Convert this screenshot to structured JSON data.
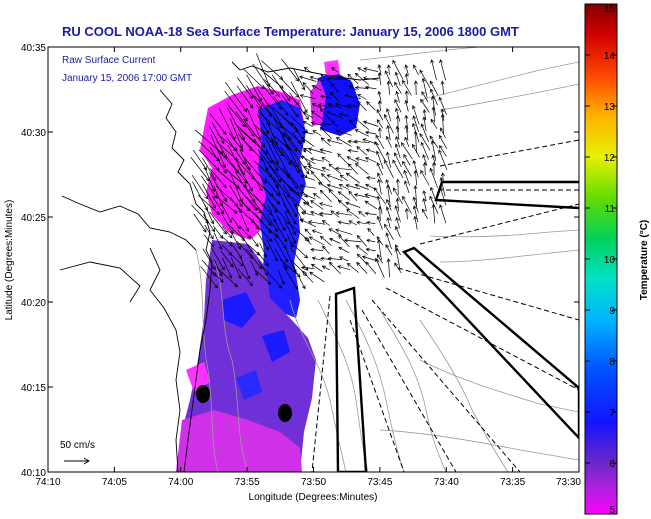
{
  "title": "RU COOL  NOAA-18  Sea Surface Temperature:  January 15, 2006 1800 GMT",
  "current_label_line1": "Raw Surface Current",
  "current_label_line2": "January 15, 2006 17:00 GMT",
  "scale_label": "50 cm/s",
  "x_axis": {
    "label": "Longitude (Degrees:Minutes)",
    "ticks": [
      "74:10",
      "74:05",
      "74:00",
      "73:55",
      "73:50",
      "73:45",
      "73:40",
      "73:35",
      "73:30"
    ],
    "range_min": [
      -74.1667,
      -73.5
    ]
  },
  "y_axis": {
    "label": "Latitude (Degrees:Minutes)",
    "ticks": [
      "40:35",
      "40:30",
      "40:25",
      "40:20",
      "40:15",
      "40:10"
    ],
    "range": [
      40.5833,
      40.1667
    ]
  },
  "colorbar": {
    "label": "Temperature (°C)",
    "ticks": [
      "15",
      "14",
      "13",
      "12",
      "11",
      "10",
      "9",
      "8",
      "7",
      "6",
      "5"
    ],
    "range": [
      5,
      15
    ],
    "colors": [
      "#ff00ff",
      "#6a28c8",
      "#0000ff",
      "#0064ff",
      "#00c8ff",
      "#00e6a0",
      "#00d200",
      "#a0e600",
      "#ffff00",
      "#ffaa00",
      "#ff3c00",
      "#c80000",
      "#800000"
    ]
  },
  "stations": [
    {
      "lon": "73:59",
      "lat": "40:14.5"
    },
    {
      "lon": "73:52.5",
      "lat": "40:13.5"
    }
  ]
}
